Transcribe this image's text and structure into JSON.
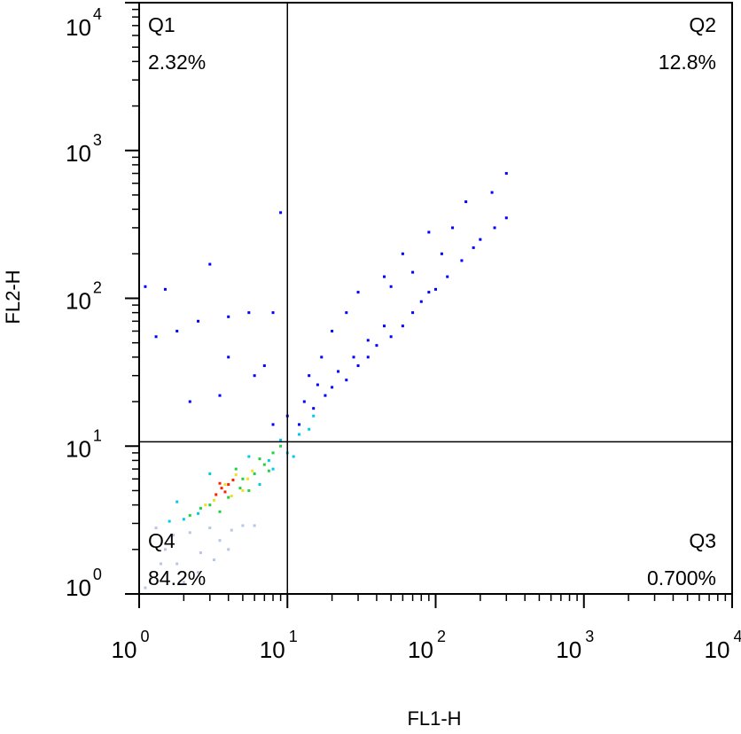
{
  "chart_data": {
    "type": "scatter",
    "x_label": "FL1-H",
    "y_label": "FL2-H",
    "log_x": true,
    "log_y": true,
    "xlim": [
      1,
      10000
    ],
    "ylim": [
      1,
      10000
    ],
    "xticks": [
      {
        "value": 1,
        "label": "10",
        "exponent": "0"
      },
      {
        "value": 10,
        "label": "10",
        "exponent": "1"
      },
      {
        "value": 100,
        "label": "10",
        "exponent": "2"
      },
      {
        "value": 1000,
        "label": "10",
        "exponent": "3"
      },
      {
        "value": 10000,
        "label": "10",
        "exponent": "4"
      }
    ],
    "yticks": [
      {
        "value": 1,
        "label": "10",
        "exponent": "0"
      },
      {
        "value": 10,
        "label": "10",
        "exponent": "1"
      },
      {
        "value": 100,
        "label": "10",
        "exponent": "2"
      },
      {
        "value": 1000,
        "label": "10",
        "exponent": "3"
      },
      {
        "value": 10000,
        "label": "10",
        "exponent": "4"
      }
    ],
    "gate": {
      "x": 10,
      "y": 10.7
    },
    "quadrants": [
      {
        "name": "Q1",
        "label": "2.32%",
        "corner": "top-left"
      },
      {
        "name": "Q2",
        "label": "12.8%",
        "corner": "top-right"
      },
      {
        "name": "Q3",
        "label": "0.700%",
        "corner": "bottom-right"
      },
      {
        "name": "Q4",
        "label": "84.2%",
        "corner": "bottom-left"
      }
    ],
    "series": [
      {
        "color": "#b8c4e8",
        "x": [
          1.2,
          1.5,
          1.8,
          2.2,
          2.6,
          3.0,
          3.5,
          4.2,
          5.0,
          6.0,
          1.3,
          1.7,
          2.0,
          2.5,
          3.2,
          4.0,
          1.1,
          1.4
        ],
        "y": [
          1.3,
          2.0,
          1.6,
          2.6,
          1.9,
          2.8,
          2.3,
          2.7,
          2.9,
          2.9,
          2.8,
          2.5,
          1.2,
          1.4,
          1.7,
          2.0,
          1.1,
          1.6
        ]
      },
      {
        "color": "#0000ff",
        "x": [
          12,
          15,
          18,
          20,
          25,
          30,
          35,
          40,
          50,
          60,
          70,
          80,
          90,
          100,
          120,
          150,
          180,
          200,
          250,
          300,
          300,
          240,
          160,
          130,
          90,
          60,
          45,
          30,
          25,
          20,
          17,
          14,
          50,
          110,
          70,
          9,
          1.1,
          1.5,
          3,
          2.5,
          4,
          5.5,
          1.8,
          1.3,
          7,
          6,
          2.2,
          3.5,
          8,
          4,
          8,
          10,
          13,
          16,
          22,
          28,
          35,
          45
        ],
        "y": [
          14,
          18,
          22,
          25,
          28,
          35,
          40,
          48,
          55,
          65,
          80,
          95,
          110,
          115,
          140,
          180,
          220,
          250,
          300,
          350,
          700,
          520,
          450,
          300,
          280,
          200,
          140,
          110,
          80,
          60,
          40,
          30,
          120,
          200,
          150,
          380,
          120,
          115,
          170,
          70,
          75,
          80,
          60,
          55,
          35,
          30,
          20,
          22,
          80,
          40,
          14,
          16,
          20,
          26,
          32,
          40,
          52,
          65
        ]
      },
      {
        "color": "#00c8f0",
        "x": [
          8,
          10,
          12,
          14,
          9,
          11,
          2.0,
          2.5,
          1.6,
          6.5,
          7.5,
          15,
          5.5,
          1.8,
          3.0
        ],
        "y": [
          7,
          9,
          12,
          13,
          11,
          8.5,
          3.2,
          3.5,
          3.1,
          5.5,
          8,
          16,
          8.5,
          4.2,
          6.5
        ]
      },
      {
        "color": "#20d040",
        "x": [
          3.0,
          4.0,
          5.0,
          6.0,
          7.0,
          8.0,
          2.6,
          4.5,
          5.5,
          6.5,
          3.5,
          2.2,
          9,
          7.5,
          4.8
        ],
        "y": [
          4.0,
          4.5,
          6.0,
          6.5,
          7.5,
          9.0,
          3.8,
          7.0,
          5.0,
          8.2,
          3.6,
          3.4,
          10,
          6.8,
          5.2
        ]
      },
      {
        "color": "#f0e020",
        "x": [
          3.2,
          3.8,
          4.5,
          5.0,
          5.8,
          2.8,
          4.2,
          5.4
        ],
        "y": [
          4.3,
          5.5,
          6.4,
          5.0,
          6.8,
          4.0,
          4.6,
          6.0
        ]
      },
      {
        "color": "#ff2000",
        "x": [
          3.3,
          3.6,
          4.0,
          3.8,
          4.3,
          3.5
        ],
        "y": [
          4.7,
          5.2,
          5.5,
          4.9,
          5.9,
          5.6
        ]
      }
    ]
  }
}
